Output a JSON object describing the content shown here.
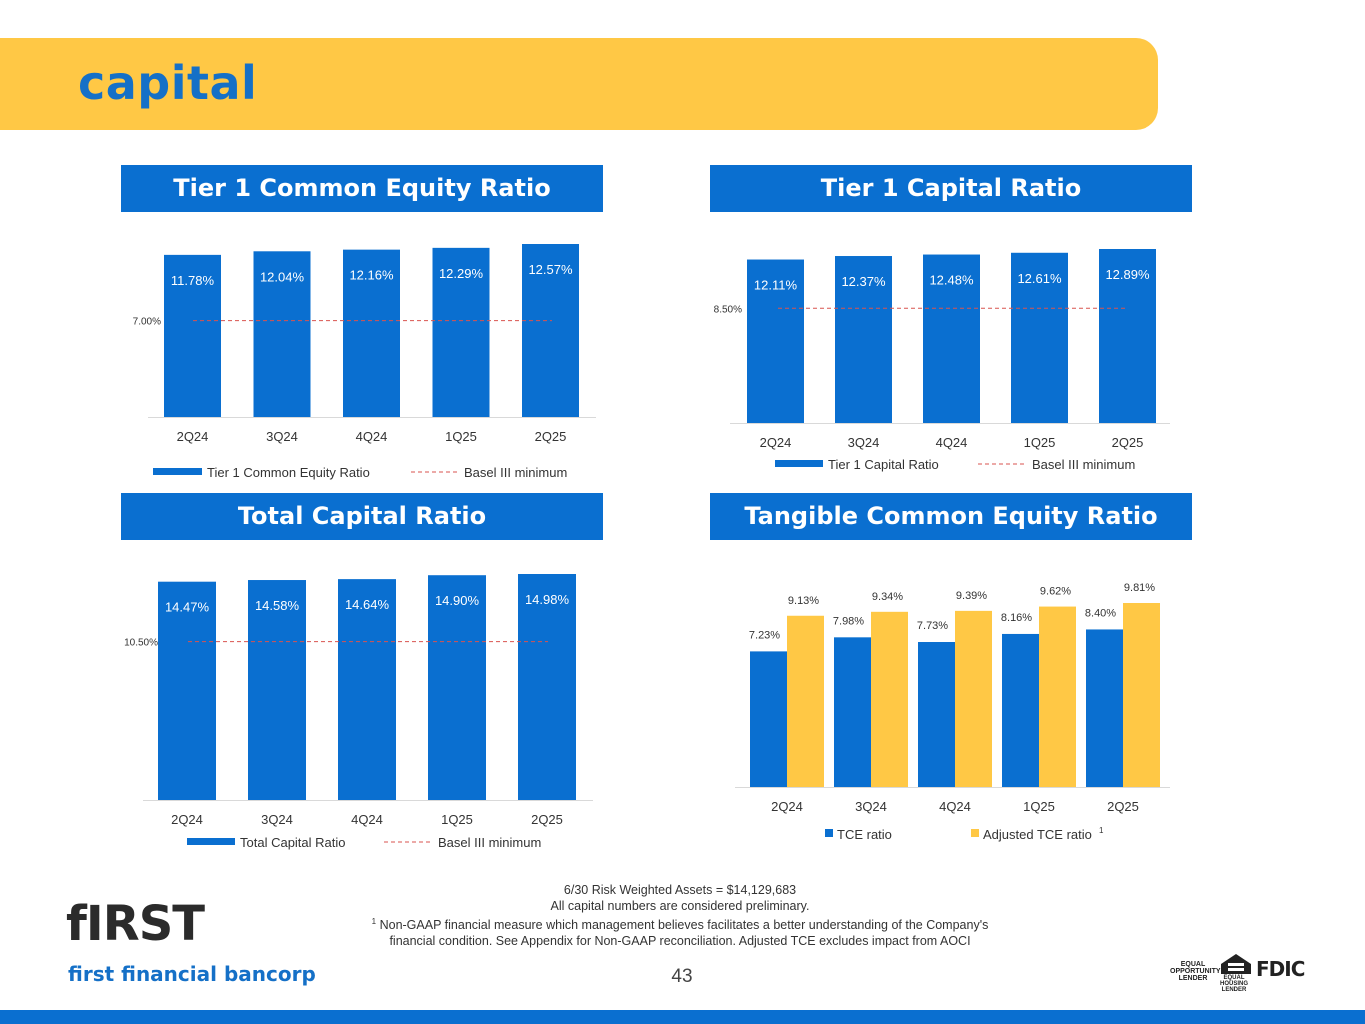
{
  "header": {
    "title": "capital"
  },
  "colors": {
    "bar_blue": "#0A6FD0",
    "bar_gold": "#FFC845",
    "ref_red": "#D9534F",
    "header_gold": "#FFC845",
    "title_blue": "#1570C7"
  },
  "chart_data": [
    {
      "type": "bar",
      "title": "Tier 1 Common Equity Ratio",
      "categories": [
        "2Q24",
        "3Q24",
        "4Q24",
        "1Q25",
        "2Q25"
      ],
      "series": [
        {
          "name": "Tier 1 Common Equity Ratio",
          "values": [
            11.78,
            12.04,
            12.16,
            12.29,
            12.57
          ],
          "labels": [
            "11.78%",
            "12.04%",
            "12.16%",
            "12.29%",
            "12.57%"
          ]
        }
      ],
      "reference_line": {
        "name": "Basel III minimum",
        "value": 7.0,
        "label": "7.00%"
      },
      "ylim": [
        0,
        12.57
      ],
      "legend": "bottom"
    },
    {
      "type": "bar",
      "title": "Tier 1 Capital Ratio",
      "categories": [
        "2Q24",
        "3Q24",
        "4Q24",
        "1Q25",
        "2Q25"
      ],
      "series": [
        {
          "name": "Tier 1 Capital Ratio",
          "values": [
            12.11,
            12.37,
            12.48,
            12.61,
            12.89
          ],
          "labels": [
            "12.11%",
            "12.37%",
            "12.48%",
            "12.61%",
            "12.89%"
          ]
        }
      ],
      "reference_line": {
        "name": "Basel III minimum",
        "value": 8.5,
        "label": "8.50%"
      },
      "ylim": [
        0,
        12.89
      ],
      "legend": "bottom"
    },
    {
      "type": "bar",
      "title": "Total Capital Ratio",
      "categories": [
        "2Q24",
        "3Q24",
        "4Q24",
        "1Q25",
        "2Q25"
      ],
      "series": [
        {
          "name": "Total Capital Ratio",
          "values": [
            14.47,
            14.58,
            14.64,
            14.9,
            14.98
          ],
          "labels": [
            "14.47%",
            "14.58%",
            "14.64%",
            "14.90%",
            "14.98%"
          ]
        }
      ],
      "reference_line": {
        "name": "Basel III minimum",
        "value": 10.5,
        "label": "10.50%"
      },
      "ylim": [
        0,
        14.98
      ],
      "legend": "bottom"
    },
    {
      "type": "bar",
      "title": "Tangible Common Equity Ratio",
      "categories": [
        "2Q24",
        "3Q24",
        "4Q24",
        "1Q25",
        "2Q25"
      ],
      "series": [
        {
          "name": "TCE ratio",
          "values": [
            7.23,
            7.98,
            7.73,
            8.16,
            8.4
          ],
          "labels": [
            "7.23%",
            "7.98%",
            "7.73%",
            "8.16%",
            "8.40%"
          ]
        },
        {
          "name": "Adjusted TCE ratio",
          "footnote": "1",
          "values": [
            9.13,
            9.34,
            9.39,
            9.62,
            9.81
          ],
          "labels": [
            "9.13%",
            "9.34%",
            "9.39%",
            "9.62%",
            "9.81%"
          ]
        }
      ],
      "ylim": [
        0,
        9.81
      ],
      "legend": "bottom"
    }
  ],
  "footer": {
    "rwa": "6/30 Risk Weighted Assets = $14,129,683",
    "preliminary": "All capital numbers are considered preliminary.",
    "footnote_mark": "1",
    "footnote_line1": "Non-GAAP financial measure which management believes facilitates a better understanding of the Company's",
    "footnote_line2": "financial condition.  See Appendix for Non-GAAP reconciliation.  Adjusted TCE excludes impact from AOCI",
    "page_number": "43"
  },
  "logo": {
    "wordmark": "fIRST",
    "subtitle": "first financial bancorp"
  },
  "badges": {
    "eol": [
      "EQUAL",
      "OPPORTUNITY",
      "LENDER"
    ],
    "ehl": [
      "EQUAL HOUSING",
      "LENDER"
    ],
    "fdic": "FDIC"
  }
}
